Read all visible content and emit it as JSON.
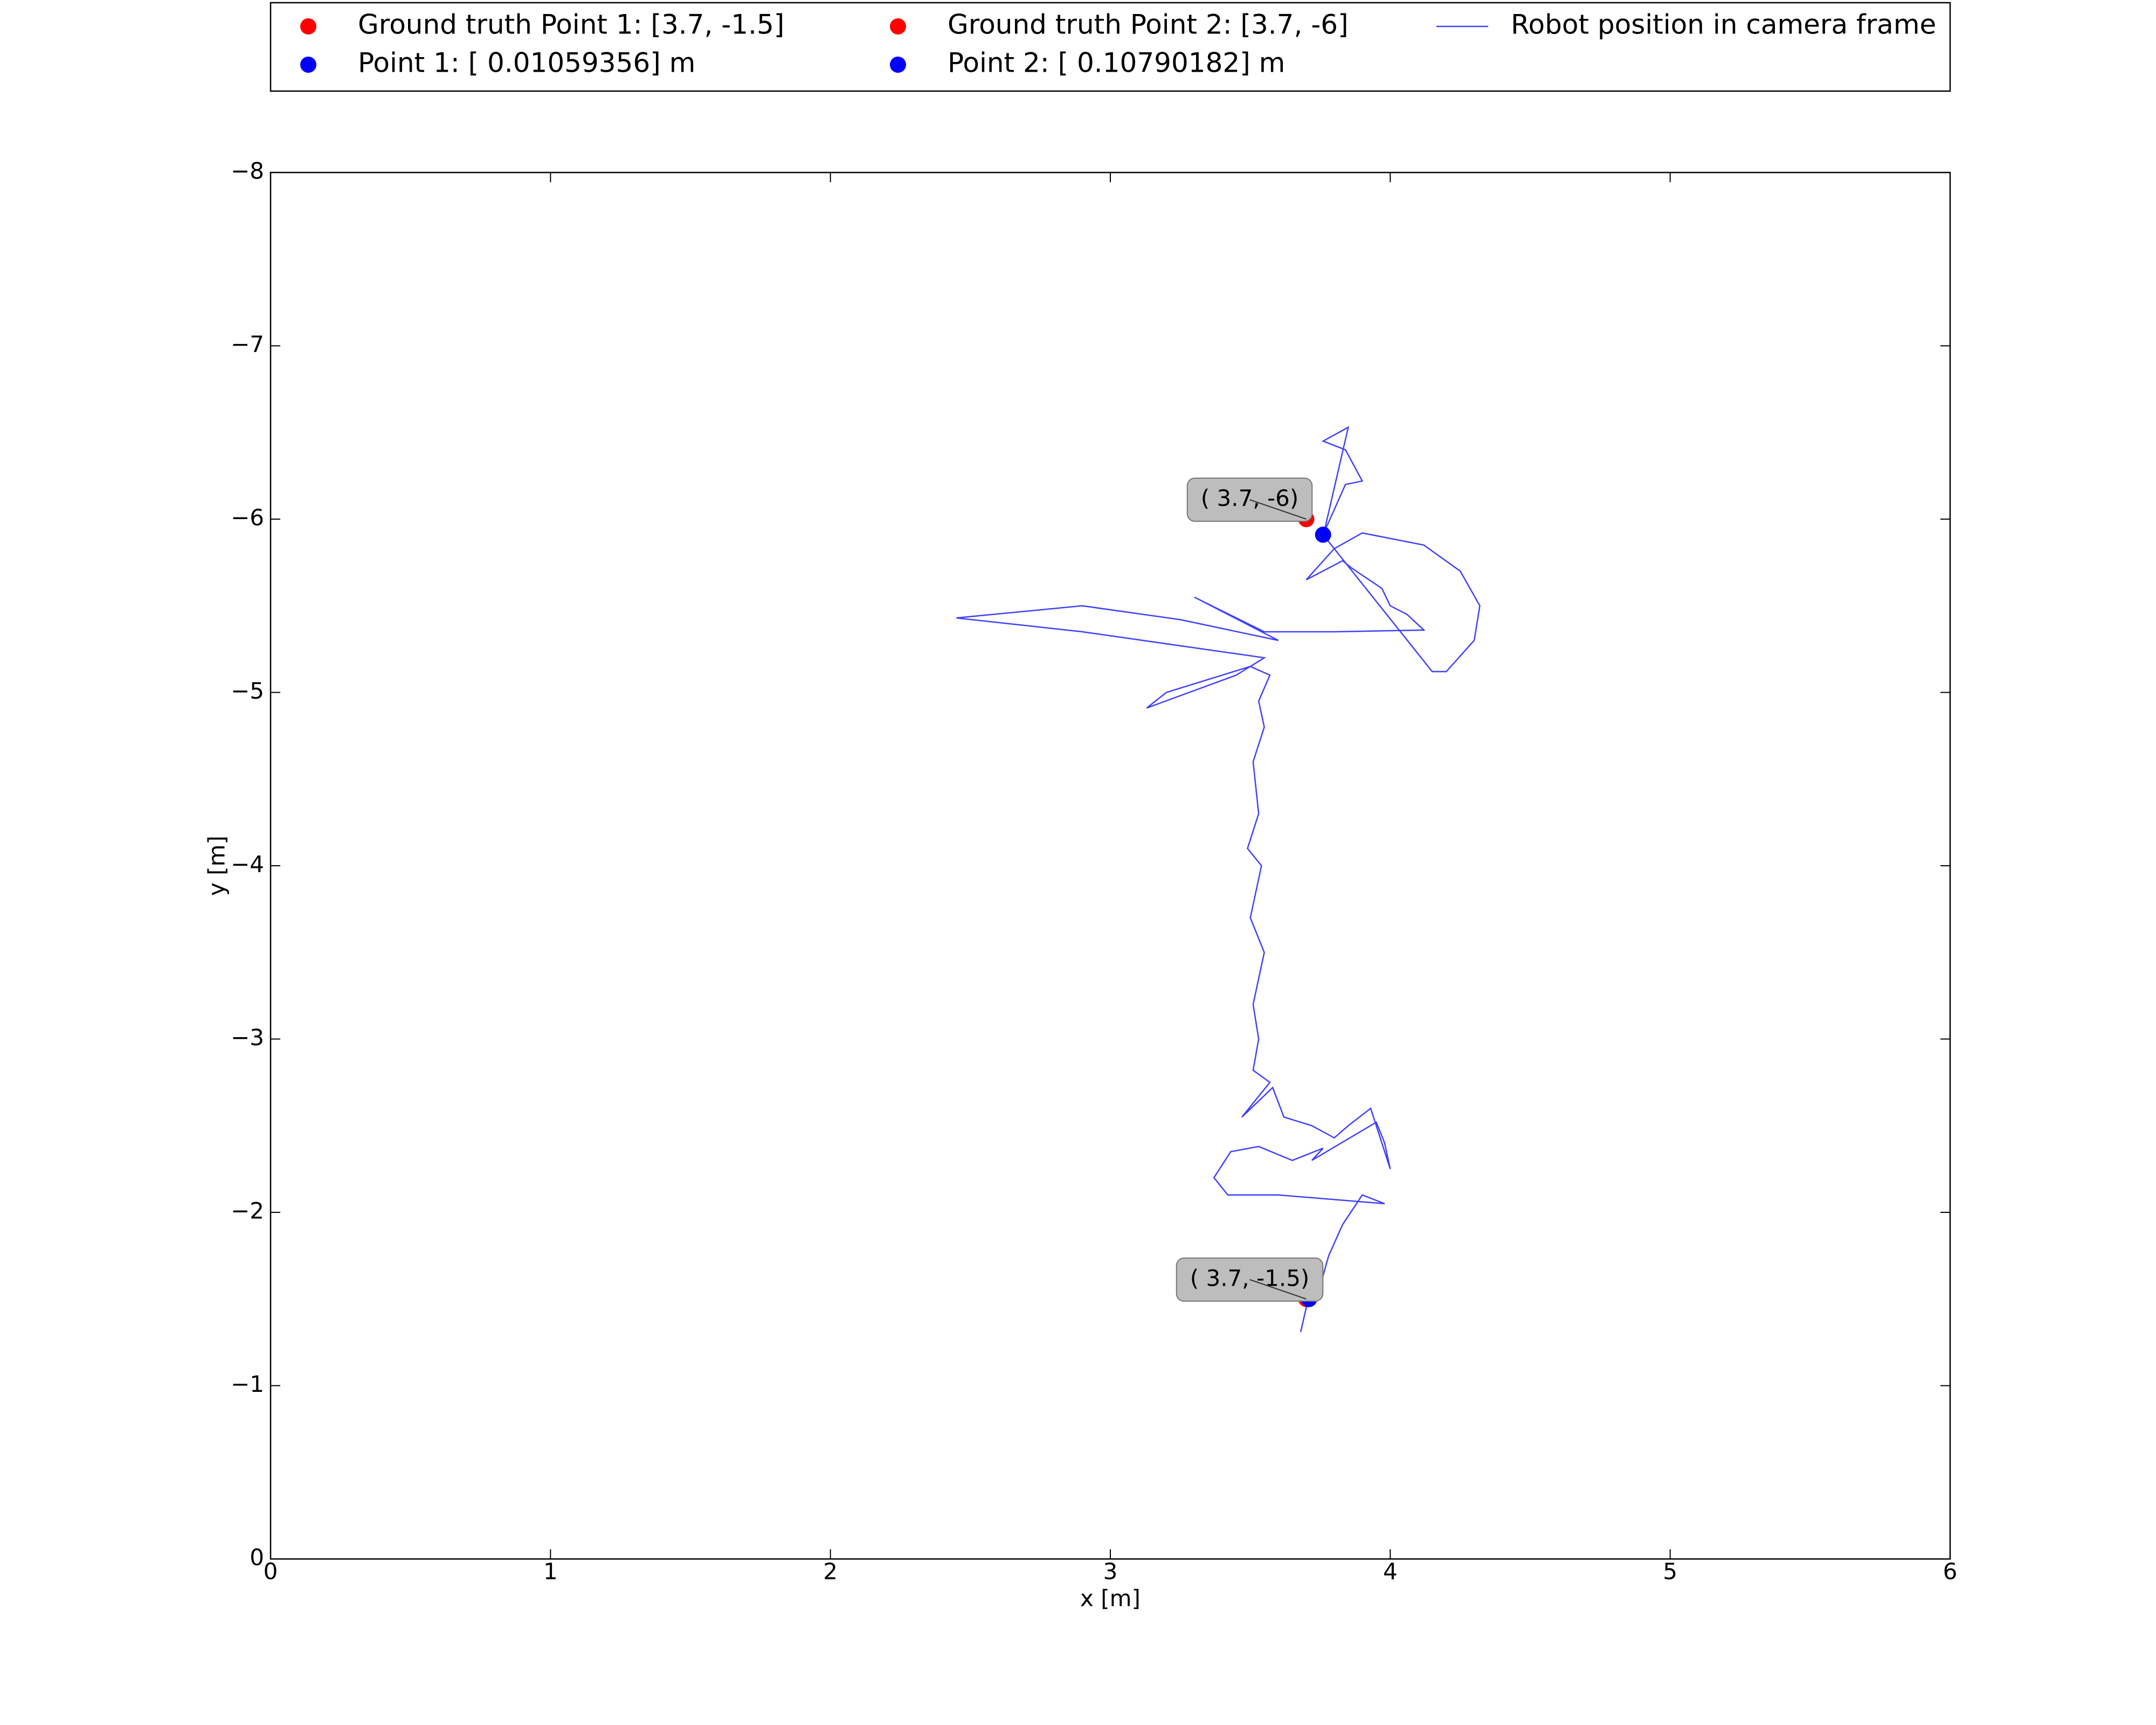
{
  "chart_data": {
    "type": "line",
    "x_label": "x [m]",
    "y_label": "y [m]",
    "xlim": [
      0,
      6
    ],
    "ylim": [
      0,
      -8
    ],
    "xticks": [
      0,
      1,
      2,
      3,
      4,
      5,
      6
    ],
    "yticks": [
      0,
      {
        "value": -1,
        "label": "−1"
      },
      {
        "value": -2,
        "label": "−2"
      },
      {
        "value": -3,
        "label": "−3"
      },
      {
        "value": -4,
        "label": "−4"
      },
      {
        "value": -5,
        "label": "−5"
      },
      {
        "value": -6,
        "label": "−6"
      },
      {
        "value": -7,
        "label": "−7"
      },
      {
        "value": -8,
        "label": "−8"
      }
    ],
    "legend_columns": 3,
    "series": [
      {
        "name": "Ground truth Point 1: [3.7, -1.5]",
        "type": "scatter",
        "color": "#ff0000",
        "x": [
          3.7
        ],
        "values": [
          -1.5
        ]
      },
      {
        "name": "Point 1: [ 0.01059356] m",
        "type": "scatter",
        "color": "#0000ff",
        "x": [
          3.71
        ],
        "values": [
          -1.5
        ]
      },
      {
        "name": "Ground truth Point 2: [3.7, -6]",
        "type": "scatter",
        "color": "#ff0000",
        "x": [
          3.7
        ],
        "values": [
          -6
        ]
      },
      {
        "name": "Point 2: [ 0.10790182] m",
        "type": "scatter",
        "color": "#0000ff",
        "x": [
          3.76
        ],
        "values": [
          -5.91
        ]
      },
      {
        "name": "Robot position in camera frame",
        "type": "line",
        "color": "#0000ff",
        "x": [
          3.68,
          3.7,
          3.74,
          3.78,
          3.83,
          3.9,
          3.98,
          3.6,
          3.42,
          3.37,
          3.43,
          3.53,
          3.65,
          3.76,
          3.72,
          3.95,
          3.98,
          4.0,
          3.93,
          3.85,
          3.8,
          3.72,
          3.62,
          3.58,
          3.47,
          3.57,
          3.51,
          3.53,
          3.51,
          3.55,
          3.5,
          3.54,
          3.49,
          3.53,
          3.51,
          3.55,
          3.53,
          3.57,
          3.5,
          3.2,
          3.13,
          3.45,
          3.55,
          2.9,
          2.45,
          2.9,
          3.25,
          3.6,
          3.3,
          3.55,
          3.8,
          4.12,
          4.06,
          4.0,
          3.97,
          3.86,
          3.83,
          3.7,
          3.8,
          3.9,
          4.12,
          4.25,
          4.32,
          4.3,
          4.2,
          4.15,
          3.76,
          3.84,
          3.9,
          3.84,
          3.76,
          3.85,
          3.76
        ],
        "values": [
          -1.31,
          -1.45,
          -1.52,
          -1.75,
          -1.93,
          -2.1,
          -2.05,
          -2.1,
          -2.1,
          -2.2,
          -2.35,
          -2.38,
          -2.3,
          -2.37,
          -2.3,
          -2.52,
          -2.4,
          -2.25,
          -2.6,
          -2.5,
          -2.43,
          -2.5,
          -2.55,
          -2.72,
          -2.55,
          -2.75,
          -2.82,
          -3.0,
          -3.2,
          -3.5,
          -3.7,
          -4.0,
          -4.1,
          -4.3,
          -4.6,
          -4.8,
          -4.95,
          -5.1,
          -5.15,
          -5.0,
          -4.91,
          -5.1,
          -5.2,
          -5.35,
          -5.43,
          -5.5,
          -5.42,
          -5.3,
          -5.55,
          -5.35,
          -5.35,
          -5.36,
          -5.45,
          -5.5,
          -5.6,
          -5.72,
          -5.76,
          -5.65,
          -5.83,
          -5.92,
          -5.85,
          -5.7,
          -5.5,
          -5.3,
          -5.12,
          -5.12,
          -5.91,
          -6.2,
          -6.22,
          -6.4,
          -6.45,
          -6.53,
          -5.9
        ]
      }
    ],
    "annotations": [
      {
        "text": "( 3.7, -1.5)",
        "x": 3.7,
        "y": -1.5
      },
      {
        "text": "( 3.7, -6)",
        "x": 3.7,
        "y": -6
      }
    ]
  }
}
